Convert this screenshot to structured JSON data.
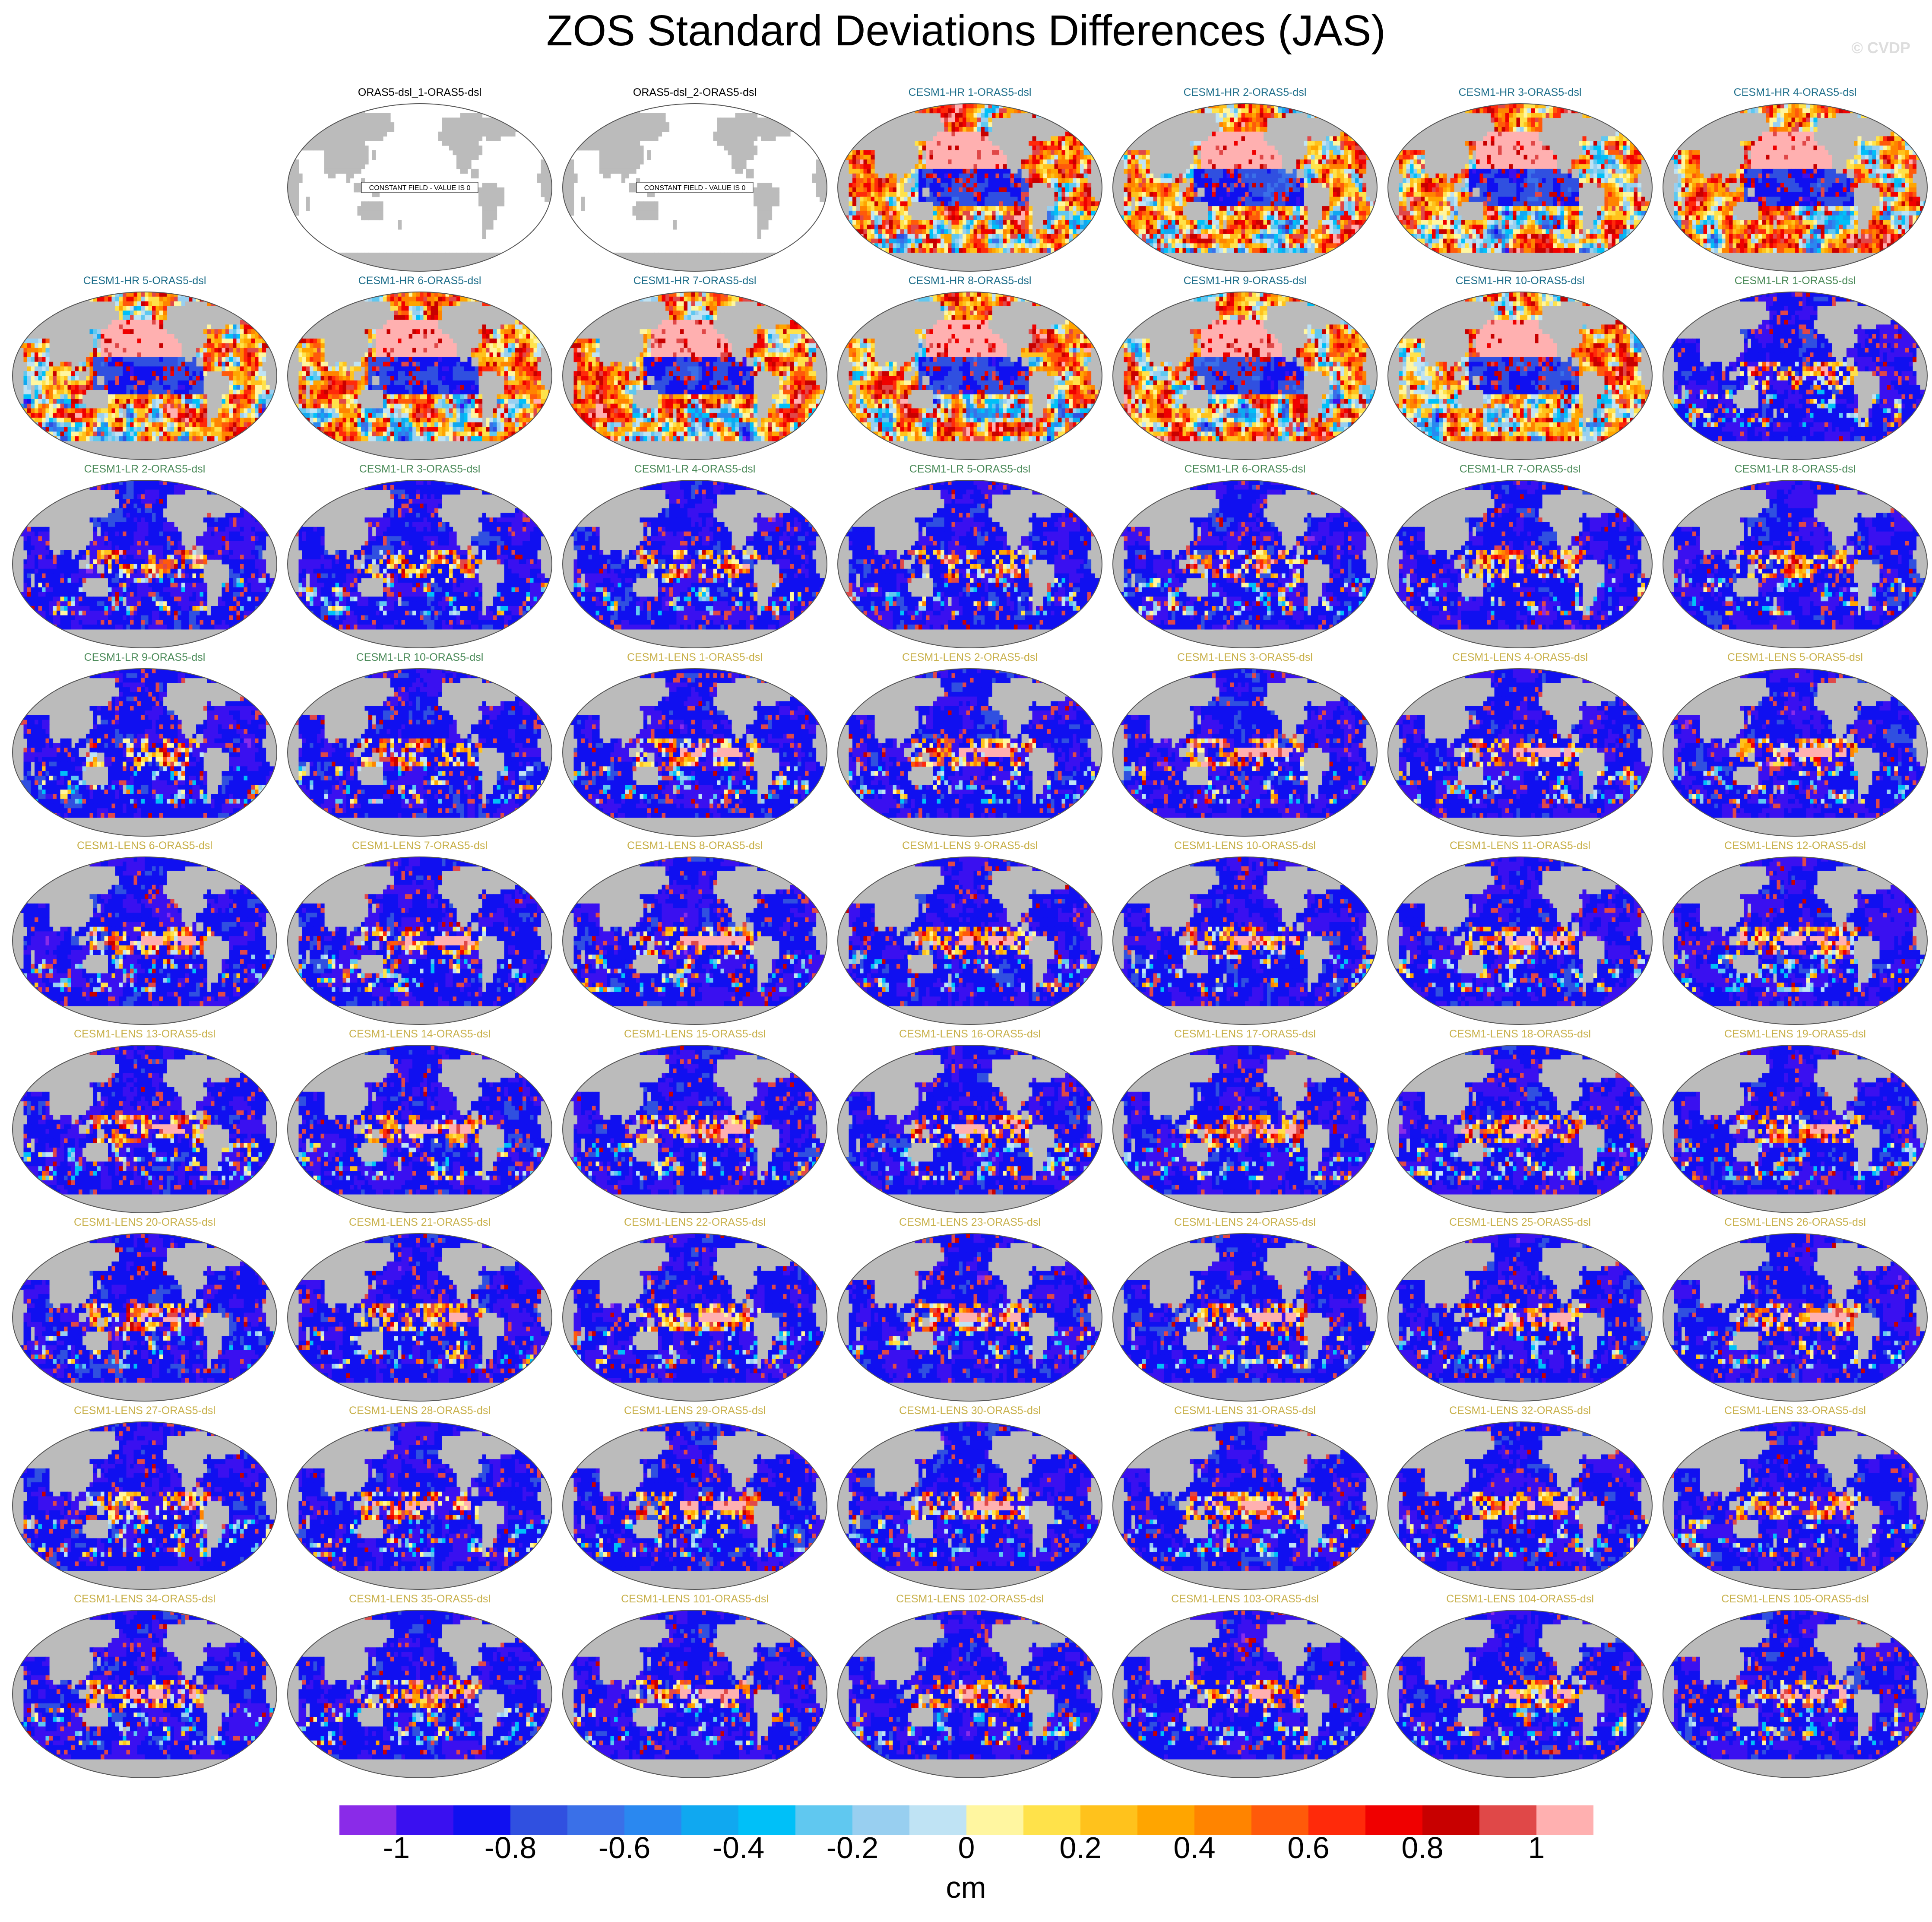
{
  "title": "ZOS Standard Deviations Differences (JAS)",
  "watermark": "© CVDP",
  "colors": {
    "land": "#bbbbbb",
    "constant_field": "#ffffff",
    "title_obs": "#000000",
    "title_hr": "#1f6f8b",
    "title_lr": "#4a8a58",
    "title_lens": "#c8b04a"
  },
  "chart_data": {
    "type": "heatmap",
    "grid": {
      "columns": 7,
      "rows": 9,
      "first_row_blank_slots": 1
    },
    "projection": "robinson",
    "panels": [
      {
        "label": "ORAS5-dsl_1-ORAS5-dsl",
        "group": "obs",
        "constant": true,
        "note": "CONSTANT FIELD - VALUE IS 0"
      },
      {
        "label": "ORAS5-dsl_2-ORAS5-dsl",
        "group": "obs",
        "constant": true,
        "note": "CONSTANT FIELD - VALUE IS 0"
      },
      {
        "label": "CESM1-HR 1-ORAS5-dsl",
        "group": "hr"
      },
      {
        "label": "CESM1-HR 2-ORAS5-dsl",
        "group": "hr"
      },
      {
        "label": "CESM1-HR 3-ORAS5-dsl",
        "group": "hr"
      },
      {
        "label": "CESM1-HR 4-ORAS5-dsl",
        "group": "hr"
      },
      {
        "label": "CESM1-HR 5-ORAS5-dsl",
        "group": "hr"
      },
      {
        "label": "CESM1-HR 6-ORAS5-dsl",
        "group": "hr"
      },
      {
        "label": "CESM1-HR 7-ORAS5-dsl",
        "group": "hr"
      },
      {
        "label": "CESM1-HR 8-ORAS5-dsl",
        "group": "hr"
      },
      {
        "label": "CESM1-HR 9-ORAS5-dsl",
        "group": "hr"
      },
      {
        "label": "CESM1-HR 10-ORAS5-dsl",
        "group": "hr"
      },
      {
        "label": "CESM1-LR 1-ORAS5-dsl",
        "group": "lr"
      },
      {
        "label": "CESM1-LR 2-ORAS5-dsl",
        "group": "lr"
      },
      {
        "label": "CESM1-LR 3-ORAS5-dsl",
        "group": "lr"
      },
      {
        "label": "CESM1-LR 4-ORAS5-dsl",
        "group": "lr"
      },
      {
        "label": "CESM1-LR 5-ORAS5-dsl",
        "group": "lr"
      },
      {
        "label": "CESM1-LR 6-ORAS5-dsl",
        "group": "lr"
      },
      {
        "label": "CESM1-LR 7-ORAS5-dsl",
        "group": "lr"
      },
      {
        "label": "CESM1-LR 8-ORAS5-dsl",
        "group": "lr"
      },
      {
        "label": "CESM1-LR 9-ORAS5-dsl",
        "group": "lr"
      },
      {
        "label": "CESM1-LR 10-ORAS5-dsl",
        "group": "lr"
      },
      {
        "label": "CESM1-LENS 1-ORAS5-dsl",
        "group": "lens"
      },
      {
        "label": "CESM1-LENS 2-ORAS5-dsl",
        "group": "lens"
      },
      {
        "label": "CESM1-LENS 3-ORAS5-dsl",
        "group": "lens"
      },
      {
        "label": "CESM1-LENS 4-ORAS5-dsl",
        "group": "lens"
      },
      {
        "label": "CESM1-LENS 5-ORAS5-dsl",
        "group": "lens"
      },
      {
        "label": "CESM1-LENS 6-ORAS5-dsl",
        "group": "lens"
      },
      {
        "label": "CESM1-LENS 7-ORAS5-dsl",
        "group": "lens"
      },
      {
        "label": "CESM1-LENS 8-ORAS5-dsl",
        "group": "lens"
      },
      {
        "label": "CESM1-LENS 9-ORAS5-dsl",
        "group": "lens"
      },
      {
        "label": "CESM1-LENS 10-ORAS5-dsl",
        "group": "lens"
      },
      {
        "label": "CESM1-LENS 11-ORAS5-dsl",
        "group": "lens"
      },
      {
        "label": "CESM1-LENS 12-ORAS5-dsl",
        "group": "lens"
      },
      {
        "label": "CESM1-LENS 13-ORAS5-dsl",
        "group": "lens"
      },
      {
        "label": "CESM1-LENS 14-ORAS5-dsl",
        "group": "lens"
      },
      {
        "label": "CESM1-LENS 15-ORAS5-dsl",
        "group": "lens"
      },
      {
        "label": "CESM1-LENS 16-ORAS5-dsl",
        "group": "lens"
      },
      {
        "label": "CESM1-LENS 17-ORAS5-dsl",
        "group": "lens"
      },
      {
        "label": "CESM1-LENS 18-ORAS5-dsl",
        "group": "lens"
      },
      {
        "label": "CESM1-LENS 19-ORAS5-dsl",
        "group": "lens"
      },
      {
        "label": "CESM1-LENS 20-ORAS5-dsl",
        "group": "lens"
      },
      {
        "label": "CESM1-LENS 21-ORAS5-dsl",
        "group": "lens"
      },
      {
        "label": "CESM1-LENS 22-ORAS5-dsl",
        "group": "lens"
      },
      {
        "label": "CESM1-LENS 23-ORAS5-dsl",
        "group": "lens"
      },
      {
        "label": "CESM1-LENS 24-ORAS5-dsl",
        "group": "lens"
      },
      {
        "label": "CESM1-LENS 25-ORAS5-dsl",
        "group": "lens"
      },
      {
        "label": "CESM1-LENS 26-ORAS5-dsl",
        "group": "lens"
      },
      {
        "label": "CESM1-LENS 27-ORAS5-dsl",
        "group": "lens"
      },
      {
        "label": "CESM1-LENS 28-ORAS5-dsl",
        "group": "lens"
      },
      {
        "label": "CESM1-LENS 29-ORAS5-dsl",
        "group": "lens"
      },
      {
        "label": "CESM1-LENS 30-ORAS5-dsl",
        "group": "lens"
      },
      {
        "label": "CESM1-LENS 31-ORAS5-dsl",
        "group": "lens"
      },
      {
        "label": "CESM1-LENS 32-ORAS5-dsl",
        "group": "lens"
      },
      {
        "label": "CESM1-LENS 33-ORAS5-dsl",
        "group": "lens"
      },
      {
        "label": "CESM1-LENS 34-ORAS5-dsl",
        "group": "lens"
      },
      {
        "label": "CESM1-LENS 35-ORAS5-dsl",
        "group": "lens"
      },
      {
        "label": "CESM1-LENS 101-ORAS5-dsl",
        "group": "lens"
      },
      {
        "label": "CESM1-LENS 102-ORAS5-dsl",
        "group": "lens"
      },
      {
        "label": "CESM1-LENS 103-ORAS5-dsl",
        "group": "lens"
      },
      {
        "label": "CESM1-LENS 104-ORAS5-dsl",
        "group": "lens"
      },
      {
        "label": "CESM1-LENS 105-ORAS5-dsl",
        "group": "lens"
      }
    ],
    "colorbar": {
      "units": "cm",
      "levels": [
        -1.1,
        -1,
        -0.9,
        -0.8,
        -0.7,
        -0.6,
        -0.5,
        -0.4,
        -0.3,
        -0.2,
        -0.1,
        0,
        0.1,
        0.2,
        0.3,
        0.4,
        0.5,
        0.6,
        0.7,
        0.8,
        0.9,
        1,
        1.1
      ],
      "colors": [
        "#8a2be8",
        "#3a10f0",
        "#1010f0",
        "#3050e0",
        "#3a70e8",
        "#2a88f0",
        "#10a8f0",
        "#00c0f8",
        "#60c8f0",
        "#98cff0",
        "#bfe3f4",
        "#fff6a0",
        "#ffe24a",
        "#ffc21c",
        "#ffa500",
        "#ff8400",
        "#ff5a0a",
        "#ff2a0a",
        "#f00000",
        "#c80000",
        "#e04848",
        "#ffb0b0"
      ],
      "tick_labels": [
        "-1",
        "-0.8",
        "-0.6",
        "-0.4",
        "-0.2",
        "0",
        "0.2",
        "0.4",
        "0.6",
        "0.8",
        "1"
      ],
      "tick_values": [
        -1,
        -0.8,
        -0.6,
        -0.4,
        -0.2,
        0,
        0.2,
        0.4,
        0.6,
        0.8,
        1
      ]
    }
  }
}
